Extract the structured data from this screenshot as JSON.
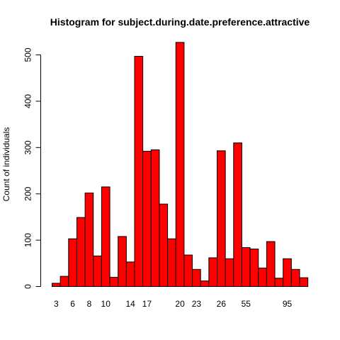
{
  "chart_data": {
    "type": "bar",
    "title": "Histogram for subject.during.date.preference.attractive",
    "xlabel": "",
    "ylabel": "Count of individuals",
    "ylim": [
      0,
      530
    ],
    "yticks": [
      0,
      100,
      200,
      300,
      400,
      500
    ],
    "bar_color": "#ff0000",
    "bar_outline_color": "#000000",
    "values": [
      7,
      22,
      103,
      149,
      202,
      66,
      215,
      20,
      108,
      53,
      497,
      292,
      295,
      178,
      103,
      527,
      68,
      37,
      12,
      62,
      293,
      60,
      310,
      84,
      81,
      40,
      97,
      18,
      60,
      37,
      19
    ],
    "xtick_labels": [
      {
        "bar": 0,
        "label": "3"
      },
      {
        "bar": 2,
        "label": "6"
      },
      {
        "bar": 4,
        "label": "8"
      },
      {
        "bar": 6,
        "label": "10"
      },
      {
        "bar": 9,
        "label": "14"
      },
      {
        "bar": 11,
        "label": "17"
      },
      {
        "bar": 15,
        "label": "20"
      },
      {
        "bar": 17,
        "label": "23"
      },
      {
        "bar": 20,
        "label": "26"
      },
      {
        "bar": 23,
        "label": "55"
      },
      {
        "bar": 28,
        "label": "95"
      }
    ]
  }
}
